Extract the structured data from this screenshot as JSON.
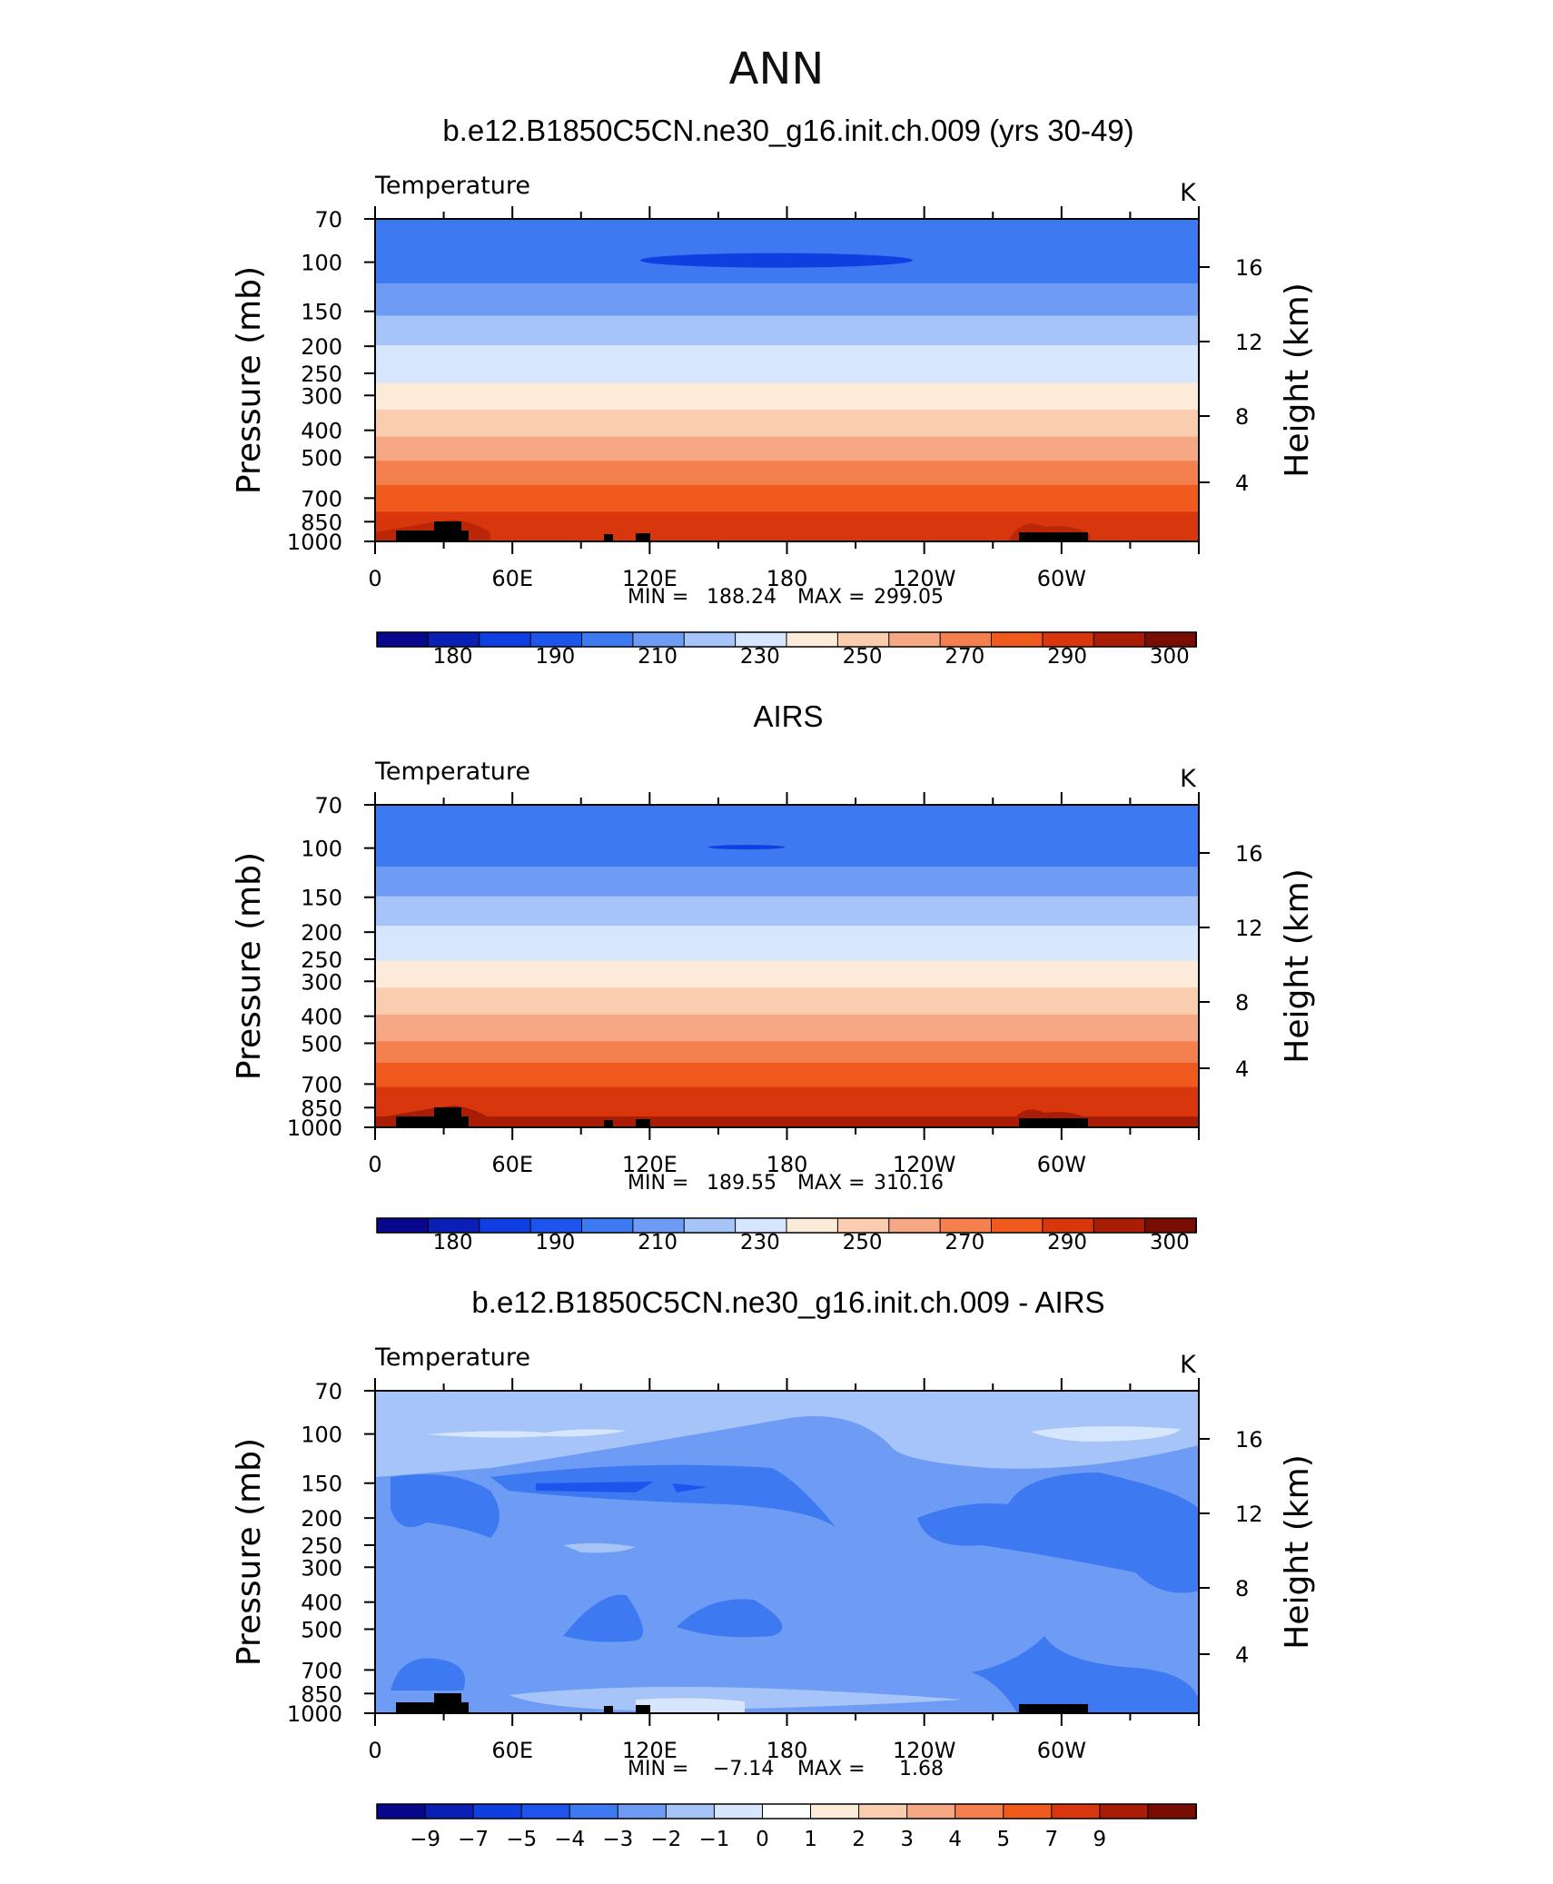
{
  "figure_title": "ANN",
  "chart_data": [
    {
      "type": "heatmap",
      "title": "b.e12.B1850C5CN.ne30_g16.init.ch.009 (yrs 30-49)",
      "variable": "Temperature",
      "units": "K",
      "xlabel": "",
      "ylabel": "Pressure (mb)",
      "y2label": "Height (km)",
      "x_ticks": [
        "0",
        "60E",
        "120E",
        "180",
        "120W",
        "60W"
      ],
      "y_ticks": [
        70,
        100,
        150,
        200,
        250,
        300,
        400,
        500,
        700,
        850,
        1000
      ],
      "y2_ticks": [
        4,
        8,
        12,
        16
      ],
      "stats": {
        "min_label": "MIN =",
        "min": "188.24",
        "max_label": "MAX =",
        "max": "299.05"
      },
      "colorbar_labels": [
        "180",
        "190",
        "210",
        "230",
        "250",
        "270",
        "290",
        "300"
      ],
      "profile_levels": [
        70,
        100,
        150,
        200,
        250,
        300,
        400,
        500,
        700,
        850,
        1000
      ],
      "profile_values": [
        196,
        193,
        209,
        220,
        227,
        234,
        248,
        258,
        276,
        283,
        290
      ]
    },
    {
      "type": "heatmap",
      "title": "AIRS",
      "variable": "Temperature",
      "units": "K",
      "xlabel": "",
      "ylabel": "Pressure (mb)",
      "y2label": "Height (km)",
      "x_ticks": [
        "0",
        "60E",
        "120E",
        "180",
        "120W",
        "60W"
      ],
      "y_ticks": [
        70,
        100,
        150,
        200,
        250,
        300,
        400,
        500,
        700,
        850,
        1000
      ],
      "y2_ticks": [
        4,
        8,
        12,
        16
      ],
      "stats": {
        "min_label": "MIN =",
        "min": "189.55",
        "max_label": "MAX =",
        "max": "310.16"
      },
      "colorbar_labels": [
        "180",
        "190",
        "210",
        "230",
        "250",
        "270",
        "290",
        "300"
      ],
      "profile_levels": [
        70,
        100,
        150,
        200,
        250,
        300,
        400,
        500,
        700,
        850,
        1000
      ],
      "profile_values": [
        196,
        194,
        210,
        222,
        229,
        238,
        251,
        261,
        279,
        287,
        294
      ]
    },
    {
      "type": "heatmap",
      "title": "b.e12.B1850C5CN.ne30_g16.init.ch.009 - AIRS",
      "variable": "Temperature",
      "units": "K",
      "xlabel": "",
      "ylabel": "Pressure (mb)",
      "y2label": "Height (km)",
      "x_ticks": [
        "0",
        "60E",
        "120E",
        "180",
        "120W",
        "60W"
      ],
      "y_ticks": [
        70,
        100,
        150,
        200,
        250,
        300,
        400,
        500,
        700,
        850,
        1000
      ],
      "y2_ticks": [
        4,
        8,
        12,
        16
      ],
      "stats": {
        "min_label": "MIN =",
        "min": "−7.14",
        "max_label": "MAX =",
        "max": "1.68"
      },
      "colorbar_labels": [
        "−9",
        "−7",
        "−5",
        "−4",
        "−3",
        "−2",
        "−1",
        "0",
        "1",
        "2",
        "3",
        "4",
        "5",
        "7",
        "9"
      ]
    }
  ],
  "colors": {
    "temperature_palette": [
      "#08088c",
      "#0a1fb4",
      "#0f3fe0",
      "#1d55ec",
      "#3d79f0",
      "#6e9cf4",
      "#a7c4f8",
      "#d6e6fc",
      "#fdebd9",
      "#fbcdb0",
      "#f6a783",
      "#f47f4f",
      "#f05a1d",
      "#d8360c",
      "#a91c05",
      "#780d04"
    ],
    "difference_palette": [
      "#08088c",
      "#0a1fb4",
      "#0f3fe0",
      "#1d55ec",
      "#3d79f0",
      "#6e9cf4",
      "#a7c4f8",
      "#d6e6fc",
      "#ffffff",
      "#fdebd9",
      "#fbcdb0",
      "#f6a783",
      "#f47f4f",
      "#f05a1d",
      "#d8360c",
      "#a91c05",
      "#780d04"
    ]
  }
}
